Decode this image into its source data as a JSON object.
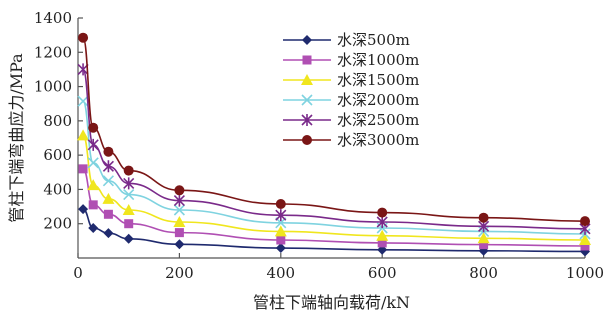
{
  "chart_data": {
    "type": "line",
    "xlabel": "管柱下端轴向载荷/kN",
    "ylabel": "管柱下端弯曲应力/MPa",
    "xlim": [
      0,
      1000
    ],
    "ylim": [
      0,
      1400
    ],
    "x_ticks": [
      0,
      200,
      400,
      600,
      800,
      1000
    ],
    "y_ticks": [
      200,
      400,
      600,
      800,
      1000,
      1200,
      1400
    ],
    "legend_position": "top-center",
    "grid": false,
    "x": [
      10,
      30,
      60,
      100,
      200,
      400,
      600,
      800,
      1000
    ],
    "series": [
      {
        "name": "水深500m",
        "color": "#1f2a6e",
        "marker": "diamond",
        "values": [
          285,
          175,
          145,
          112,
          80,
          58,
          48,
          42,
          38
        ]
      },
      {
        "name": "水深1000m",
        "color": "#b04fb3",
        "marker": "square",
        "values": [
          520,
          310,
          255,
          200,
          148,
          105,
          88,
          78,
          70
        ]
      },
      {
        "name": "水深1500m",
        "color": "#f0e61e",
        "marker": "triangle",
        "values": [
          715,
          425,
          345,
          280,
          210,
          155,
          130,
          115,
          105
        ]
      },
      {
        "name": "水深2000m",
        "color": "#7fd3e0",
        "marker": "x",
        "values": [
          915,
          555,
          450,
          370,
          280,
          205,
          175,
          155,
          140
        ]
      },
      {
        "name": "水深2500m",
        "color": "#7a2a8a",
        "marker": "asterisk",
        "values": [
          1100,
          660,
          535,
          435,
          335,
          250,
          210,
          185,
          170
        ]
      },
      {
        "name": "水深3000m",
        "color": "#7a1616",
        "marker": "circle",
        "values": [
          1285,
          760,
          620,
          510,
          395,
          315,
          265,
          235,
          215
        ]
      }
    ]
  }
}
